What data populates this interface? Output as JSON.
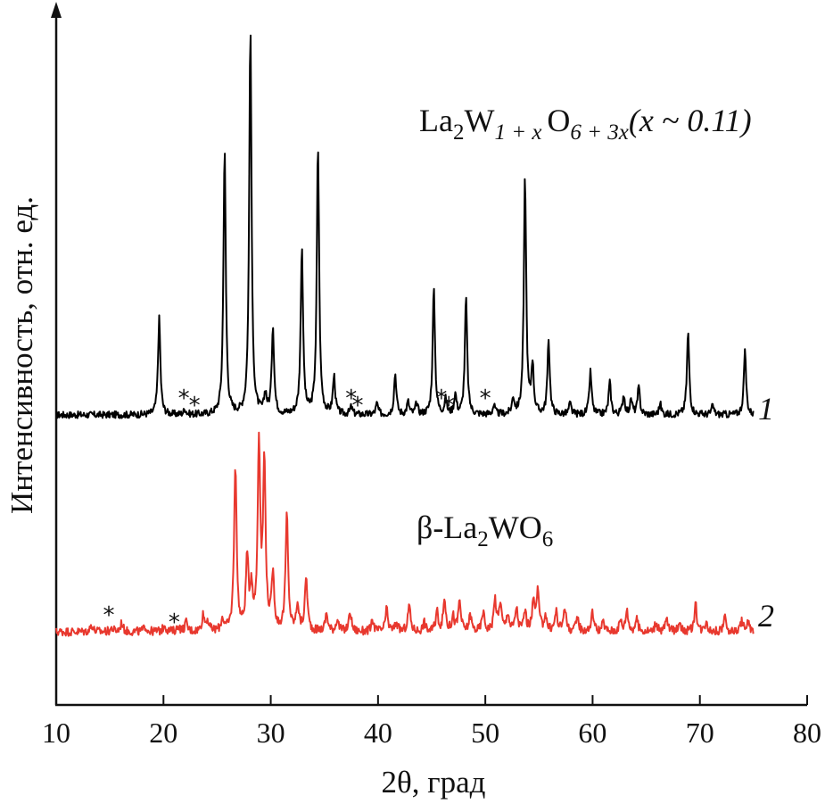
{
  "chart_data": {
    "type": "line",
    "xlabel": "2θ, град",
    "ylabel": "Интенсивность, отн. ед.",
    "xlim": [
      10,
      80
    ],
    "xticks": [
      10,
      20,
      30,
      40,
      50,
      60,
      70,
      80
    ],
    "series": [
      {
        "name": "La2W1+xO6+3x (x ~ 0.11)",
        "label": {
          "main": "La",
          "s1": "2",
          "w": "W",
          "s2": "1 + x",
          "o": "O",
          "s3": "6 + 3x",
          "x": "(x ~ 0.11)"
        },
        "curve_number": "1",
        "color": "#000000",
        "baseline": 14,
        "noise": 1.3,
        "peaks": [
          {
            "x": 19.6,
            "h": 108
          },
          {
            "x": 22.0,
            "h": 6
          },
          {
            "x": 25.7,
            "h": 296
          },
          {
            "x": 28.1,
            "h": 430
          },
          {
            "x": 29.5,
            "h": 22
          },
          {
            "x": 30.2,
            "h": 98
          },
          {
            "x": 32.9,
            "h": 188
          },
          {
            "x": 34.4,
            "h": 300
          },
          {
            "x": 35.9,
            "h": 42
          },
          {
            "x": 37.5,
            "h": 8
          },
          {
            "x": 39.9,
            "h": 12
          },
          {
            "x": 41.6,
            "h": 46
          },
          {
            "x": 42.8,
            "h": 14
          },
          {
            "x": 43.6,
            "h": 12
          },
          {
            "x": 45.2,
            "h": 140
          },
          {
            "x": 46.3,
            "h": 16
          },
          {
            "x": 47.2,
            "h": 22
          },
          {
            "x": 48.2,
            "h": 130
          },
          {
            "x": 50.8,
            "h": 10
          },
          {
            "x": 52.6,
            "h": 18
          },
          {
            "x": 53.7,
            "h": 265
          },
          {
            "x": 54.4,
            "h": 55
          },
          {
            "x": 55.9,
            "h": 82
          },
          {
            "x": 57.9,
            "h": 12
          },
          {
            "x": 59.8,
            "h": 48
          },
          {
            "x": 61.6,
            "h": 36
          },
          {
            "x": 62.9,
            "h": 22
          },
          {
            "x": 63.6,
            "h": 16
          },
          {
            "x": 64.3,
            "h": 30
          },
          {
            "x": 66.3,
            "h": 12
          },
          {
            "x": 68.9,
            "h": 92
          },
          {
            "x": 71.2,
            "h": 10
          },
          {
            "x": 74.2,
            "h": 70
          }
        ],
        "markers": [
          21.9,
          22.9,
          37.5,
          38.1,
          45.9,
          46.6,
          50.0
        ]
      },
      {
        "name": "β-La2WO6",
        "label": {
          "main": "β-La",
          "s1": "2",
          "w": "WO",
          "s2": "6"
        },
        "curve_number": "2",
        "color": "#e8382e",
        "baseline": 12,
        "noise": 1.6,
        "peaks": [
          {
            "x": 13.3,
            "h": 8
          },
          {
            "x": 15.2,
            "h": 4
          },
          {
            "x": 16.1,
            "h": 10
          },
          {
            "x": 18.3,
            "h": 6
          },
          {
            "x": 20.1,
            "h": 8
          },
          {
            "x": 21.4,
            "h": 6
          },
          {
            "x": 22.1,
            "h": 10
          },
          {
            "x": 23.7,
            "h": 18
          },
          {
            "x": 24.1,
            "h": 12
          },
          {
            "x": 25.5,
            "h": 14
          },
          {
            "x": 26.7,
            "h": 186
          },
          {
            "x": 27.8,
            "h": 80
          },
          {
            "x": 28.2,
            "h": 45
          },
          {
            "x": 28.9,
            "h": 208
          },
          {
            "x": 29.4,
            "h": 186
          },
          {
            "x": 30.2,
            "h": 62
          },
          {
            "x": 31.5,
            "h": 130
          },
          {
            "x": 32.5,
            "h": 30
          },
          {
            "x": 33.3,
            "h": 60
          },
          {
            "x": 35.2,
            "h": 20
          },
          {
            "x": 36.2,
            "h": 14
          },
          {
            "x": 37.4,
            "h": 22
          },
          {
            "x": 39.5,
            "h": 12
          },
          {
            "x": 40.8,
            "h": 24
          },
          {
            "x": 41.7,
            "h": 10
          },
          {
            "x": 42.9,
            "h": 30
          },
          {
            "x": 44.3,
            "h": 10
          },
          {
            "x": 45.5,
            "h": 22
          },
          {
            "x": 46.2,
            "h": 36
          },
          {
            "x": 47.0,
            "h": 16
          },
          {
            "x": 47.6,
            "h": 34
          },
          {
            "x": 48.6,
            "h": 18
          },
          {
            "x": 49.8,
            "h": 22
          },
          {
            "x": 50.9,
            "h": 36
          },
          {
            "x": 51.4,
            "h": 32
          },
          {
            "x": 52.1,
            "h": 20
          },
          {
            "x": 52.9,
            "h": 26
          },
          {
            "x": 53.7,
            "h": 22
          },
          {
            "x": 54.5,
            "h": 36
          },
          {
            "x": 54.9,
            "h": 42
          },
          {
            "x": 55.6,
            "h": 18
          },
          {
            "x": 56.6,
            "h": 22
          },
          {
            "x": 57.4,
            "h": 28
          },
          {
            "x": 58.6,
            "h": 16
          },
          {
            "x": 60.0,
            "h": 22
          },
          {
            "x": 61.0,
            "h": 10
          },
          {
            "x": 62.6,
            "h": 12
          },
          {
            "x": 63.2,
            "h": 24
          },
          {
            "x": 64.1,
            "h": 14
          },
          {
            "x": 65.9,
            "h": 10
          },
          {
            "x": 66.9,
            "h": 14
          },
          {
            "x": 68.1,
            "h": 12
          },
          {
            "x": 69.6,
            "h": 30
          },
          {
            "x": 70.6,
            "h": 12
          },
          {
            "x": 72.3,
            "h": 16
          },
          {
            "x": 73.9,
            "h": 12
          },
          {
            "x": 74.5,
            "h": 10
          }
        ],
        "markers": [
          14.9,
          21.0
        ]
      }
    ]
  }
}
